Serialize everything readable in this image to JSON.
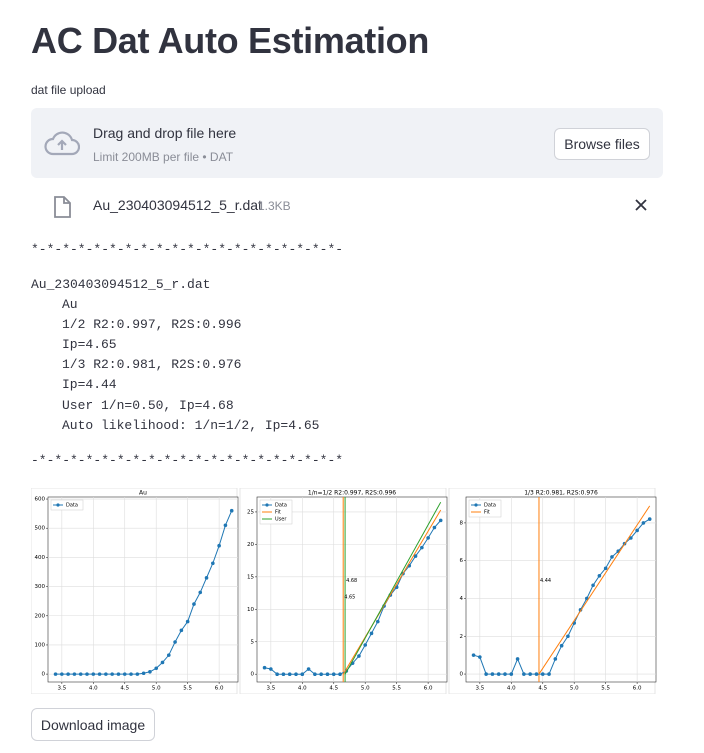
{
  "header": {
    "title": "AC Dat Auto Estimation"
  },
  "uploader": {
    "label": "dat file upload",
    "prompt": "Drag and drop file here",
    "limit": "Limit 200MB per file • DAT",
    "button": "Browse files"
  },
  "file": {
    "name": "Au_230403094512_5_r.dat",
    "size": "1.3KB"
  },
  "output": {
    "separator_top": "*-*-*-*-*-*-*-*-*-*-*-*-*-*-*-*-*-*-*-*-",
    "filename": "Au_230403094512_5_r.dat",
    "lines": [
      "Au",
      "1/2 R2:0.997, R2S:0.996",
      "Ip=4.65",
      "1/3 R2:0.981, R2S:0.976",
      "Ip=4.44",
      "User 1/n=0.50, Ip=4.68",
      "Auto likelihood: 1/n=1/2, Ip=4.65"
    ],
    "separator_bottom": "-*-*-*-*-*-*-*-*-*-*-*-*-*-*-*-*-*-*-*-*"
  },
  "chart_data": [
    {
      "type": "line",
      "title": "Au",
      "legend": "upper left",
      "grid": true,
      "x": [
        3.4,
        3.5,
        3.6,
        3.7,
        3.8,
        3.9,
        4.0,
        4.1,
        4.2,
        4.3,
        4.4,
        4.5,
        4.6,
        4.7,
        4.8,
        4.9,
        5.0,
        5.1,
        5.2,
        5.3,
        5.4,
        5.5,
        5.6,
        5.7,
        5.8,
        5.9,
        6.0,
        6.1,
        6.2
      ],
      "series": [
        {
          "name": "Data",
          "color": "#1f77b4",
          "marker": "o",
          "values": [
            0,
            0,
            0,
            0,
            0,
            0,
            0,
            0,
            0,
            0,
            0,
            0,
            0,
            0,
            3,
            8,
            20,
            40,
            65,
            110,
            150,
            180,
            240,
            280,
            330,
            380,
            440,
            510,
            560
          ]
        }
      ],
      "xlim": [
        3.28,
        6.3
      ],
      "xticks": [
        3.5,
        {
          "value": 4,
          "label": "4.0"
        },
        4.5,
        {
          "value": 5,
          "label": "5.0"
        },
        5.5,
        {
          "value": 6,
          "label": "6.0"
        }
      ],
      "ylim": [
        -27,
        607
      ],
      "yticks": [
        0,
        100,
        200,
        300,
        400,
        500,
        600
      ]
    },
    {
      "type": "line",
      "title": "1/n=1/2 R2:0.997, R2S:0.996",
      "legend": "upper left",
      "grid": true,
      "x": [
        3.4,
        3.5,
        3.6,
        3.7,
        3.8,
        3.9,
        4.0,
        4.1,
        4.2,
        4.3,
        4.4,
        4.5,
        4.6,
        4.7,
        4.8,
        4.9,
        5.0,
        5.1,
        5.2,
        5.3,
        5.4,
        5.5,
        5.6,
        5.7,
        5.8,
        5.9,
        6.0,
        6.1,
        6.2
      ],
      "series": [
        {
          "name": "Data",
          "color": "#1f77b4",
          "marker": "o",
          "values": [
            1.0,
            0.8,
            0,
            0,
            0,
            0,
            0,
            0.8,
            0,
            0,
            0,
            0,
            0,
            0.5,
            1.7,
            2.8,
            4.5,
            6.3,
            8.1,
            10.5,
            12.2,
            13.4,
            15.5,
            16.7,
            18.2,
            19.5,
            21,
            22.6,
            23.7
          ]
        },
        {
          "name": "Fit",
          "color": "#ff7f0e",
          "x": [
            4.65,
            6.2
          ],
          "values": [
            0,
            25.3
          ]
        },
        {
          "name": "User",
          "color": "#2ca02c",
          "x": [
            4.68,
            6.2
          ],
          "values": [
            0,
            26.5
          ]
        }
      ],
      "vlines": [
        {
          "value": 4.68,
          "color": "#2ca02c"
        },
        {
          "value": 4.65,
          "color": "#ff7f0e"
        }
      ],
      "xlim": [
        3.28,
        6.3
      ],
      "xticks": [
        3.5,
        {
          "value": 4,
          "label": "4.0"
        },
        4.5,
        {
          "value": 5,
          "label": "5.0"
        },
        5.5,
        {
          "value": 6,
          "label": "6.0"
        }
      ],
      "ylim": [
        -1.2,
        27.3
      ],
      "yticks": [
        0,
        5,
        10,
        15,
        20,
        25
      ]
    },
    {
      "type": "line",
      "title": "1/3 R2:0.981, R2S:0.976",
      "legend": "upper left",
      "grid": true,
      "x": [
        3.4,
        3.5,
        3.6,
        3.7,
        3.8,
        3.9,
        4.0,
        4.1,
        4.2,
        4.3,
        4.4,
        4.5,
        4.6,
        4.7,
        4.8,
        4.9,
        5.0,
        5.1,
        5.2,
        5.3,
        5.4,
        5.5,
        5.6,
        5.7,
        5.8,
        5.9,
        6.0,
        6.1,
        6.2
      ],
      "series": [
        {
          "name": "Data",
          "color": "#1f77b4",
          "marker": "o",
          "values": [
            1.0,
            0.9,
            0,
            0,
            0,
            0,
            0,
            0.8,
            0,
            0,
            0,
            0,
            0,
            0.8,
            1.5,
            2.0,
            2.7,
            3.4,
            4.0,
            4.7,
            5.2,
            5.6,
            6.2,
            6.5,
            6.9,
            7.2,
            7.6,
            8.0,
            8.2
          ]
        },
        {
          "name": "Fit",
          "color": "#ff7f0e",
          "x": [
            4.44,
            6.2
          ],
          "values": [
            0,
            8.9
          ]
        }
      ],
      "vlines": [
        {
          "value": 4.44,
          "color": "#ff7f0e"
        }
      ],
      "xlim": [
        3.28,
        6.3
      ],
      "xticks": [
        3.5,
        {
          "value": 4,
          "label": "4.0"
        },
        4.5,
        {
          "value": 5,
          "label": "5.0"
        },
        5.5,
        {
          "value": 6,
          "label": "6.0"
        }
      ],
      "ylim": [
        -0.42,
        9.37
      ],
      "yticks": [
        0,
        2,
        4,
        6,
        8
      ]
    }
  ],
  "download_button": "Download image"
}
